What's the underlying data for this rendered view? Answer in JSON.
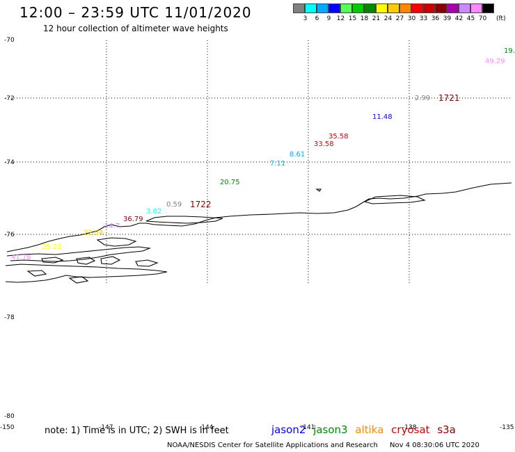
{
  "header": {
    "title": "12:00 – 23:59 UTC 11/01/2020",
    "subtitle": "12 hour collection of altimeter wave heights"
  },
  "legend": {
    "unit": "(ft)",
    "bins": [
      {
        "label": "3",
        "color": "#808080"
      },
      {
        "label": "6",
        "color": "#00ffff"
      },
      {
        "label": "9",
        "color": "#00aaff"
      },
      {
        "label": "12",
        "color": "#0000ff"
      },
      {
        "label": "15",
        "color": "#55ff55"
      },
      {
        "label": "18",
        "color": "#00cc00"
      },
      {
        "label": "21",
        "color": "#008800"
      },
      {
        "label": "24",
        "color": "#ffff00"
      },
      {
        "label": "27",
        "color": "#ffcc00"
      },
      {
        "label": "30",
        "color": "#ff8800"
      },
      {
        "label": "33",
        "color": "#ff0000"
      },
      {
        "label": "36",
        "color": "#cc0000"
      },
      {
        "label": "39",
        "color": "#880000"
      },
      {
        "label": "42",
        "color": "#aa00aa"
      },
      {
        "label": "45",
        "color": "#cc88ff"
      },
      {
        "label": "70",
        "color": "#ff88ff"
      },
      {
        "label": "",
        "color": "#000000"
      }
    ]
  },
  "axes": {
    "lat_labels": [
      "-70",
      "-72",
      "-74",
      "-76",
      "-78",
      "-80"
    ],
    "lon_labels": [
      "-150",
      "-147",
      "-144",
      "-141",
      "-138",
      "-135"
    ]
  },
  "observations": [
    {
      "text": "19.",
      "color": "#008800"
    },
    {
      "text": "49.29",
      "color": "#ff88ff"
    },
    {
      "text": "2.99",
      "color": "#808080"
    },
    {
      "text": "1721",
      "color": "#880000"
    },
    {
      "text": "11.48",
      "color": "#0000ff"
    },
    {
      "text": "35.58",
      "color": "#cc0000"
    },
    {
      "text": "33.58",
      "color": "#cc0000"
    },
    {
      "text": "8.61",
      "color": "#00aaff"
    },
    {
      "text": "7.11",
      "color": "#00aaff"
    },
    {
      "text": "20.75",
      "color": "#008800"
    },
    {
      "text": "0.59",
      "color": "#808080"
    },
    {
      "text": "1722",
      "color": "#880000"
    },
    {
      "text": "3.82",
      "color": "#00ffff"
    },
    {
      "text": "36.79",
      "color": "#880000"
    },
    {
      "text": "14.7",
      "color": "#cc88ff"
    },
    {
      "text": "22.54",
      "color": "#ffcc00"
    },
    {
      "text": "25.23",
      "color": "#ffff00"
    },
    {
      "text": "41.78",
      "color": "#ff88ff"
    }
  ],
  "footer": {
    "note": "note: 1) Time is in UTC; 2) SWH is in feet",
    "satellites": [
      {
        "name": "jason2",
        "color": "#0000ff"
      },
      {
        "name": "jason3",
        "color": "#008800"
      },
      {
        "name": "altika",
        "color": "#ff8800"
      },
      {
        "name": "cryosat",
        "color": "#cc0000"
      },
      {
        "name": "s3a",
        "color": "#880000"
      }
    ],
    "credit": "NOAA/NESDIS Center for Satellite Applications and Research",
    "timestamp": "Nov  4 08:30:06 UTC 2020"
  }
}
